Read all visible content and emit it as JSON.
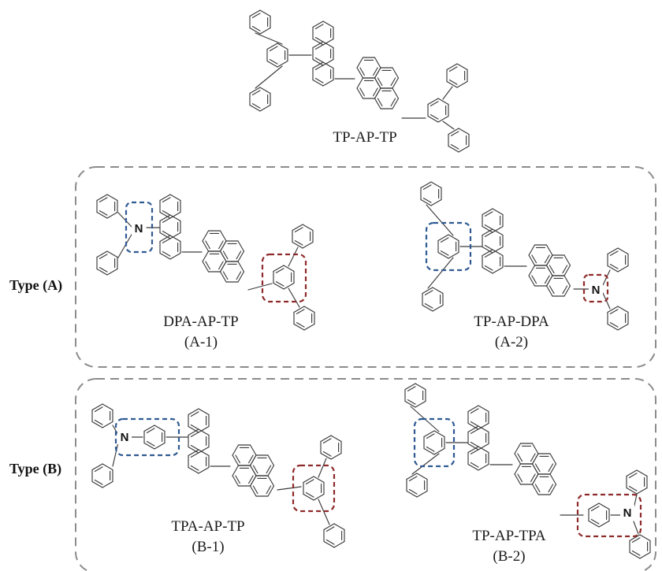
{
  "colors": {
    "donor_box": "#2f5a92",
    "acceptor_box": "#8e2a2a",
    "group_box": "#8c8c8c",
    "bond": "#3a3a3a"
  },
  "reference": {
    "name": "TP-AP-TP"
  },
  "groups": [
    {
      "label": "Type (A)",
      "molecules": [
        {
          "name": "DPA-AP-TP",
          "code": "(A-1)"
        },
        {
          "name": "TP-AP-DPA",
          "code": "(A-2)"
        }
      ]
    },
    {
      "label": "Type (B)",
      "molecules": [
        {
          "name": "TPA-AP-TP",
          "code": "(B-1)"
        },
        {
          "name": "TP-AP-TPA",
          "code": "(B-2)"
        }
      ]
    }
  ],
  "atom_label": "N"
}
